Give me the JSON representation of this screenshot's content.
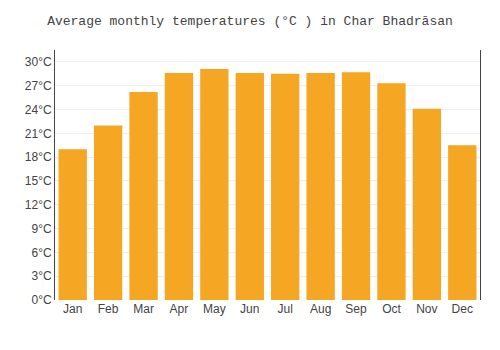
{
  "chart_data": {
    "type": "bar",
    "title": "Average monthly temperatures (°C ) in Char Bhadrāsan",
    "categories": [
      "Jan",
      "Feb",
      "Mar",
      "Apr",
      "May",
      "Jun",
      "Jul",
      "Aug",
      "Sep",
      "Oct",
      "Nov",
      "Dec"
    ],
    "values": [
      19.0,
      22.0,
      26.2,
      28.6,
      29.1,
      28.6,
      28.5,
      28.6,
      28.7,
      27.3,
      24.1,
      19.5
    ],
    "color": "#F5A623",
    "ylim": [
      0,
      31.5
    ],
    "yticks": [
      {
        "value": 0,
        "label": "0°C"
      },
      {
        "value": 3,
        "label": "3°C"
      },
      {
        "value": 6,
        "label": "6°C"
      },
      {
        "value": 9,
        "label": "9°C"
      },
      {
        "value": 12,
        "label": "12°C"
      },
      {
        "value": 15,
        "label": "15°C"
      },
      {
        "value": 18,
        "label": "18°C"
      },
      {
        "value": 21,
        "label": "21°C"
      },
      {
        "value": 24,
        "label": "24°C"
      },
      {
        "value": 27,
        "label": "27°C"
      },
      {
        "value": 30,
        "label": "30°C"
      }
    ],
    "grid": true
  }
}
